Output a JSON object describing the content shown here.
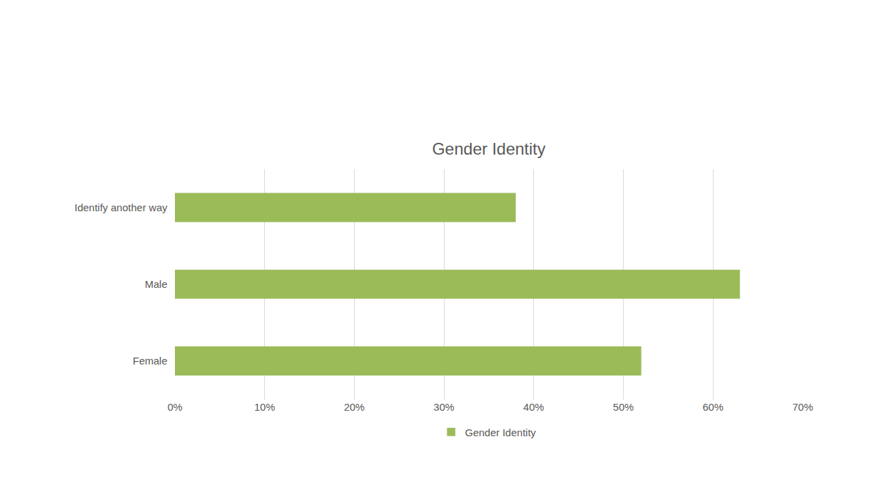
{
  "chart_data": {
    "type": "bar",
    "title": "Gender Identity",
    "orientation": "horizontal",
    "categories": [
      "Identify another way",
      "Male",
      "Female"
    ],
    "series": [
      {
        "name": "Gender Identity",
        "color": "#9bbb59",
        "values": [
          38,
          63,
          52
        ]
      }
    ],
    "xlim": [
      0,
      70
    ],
    "xticks": [
      {
        "value": 0,
        "label": "0%"
      },
      {
        "value": 10,
        "label": "10%"
      },
      {
        "value": 20,
        "label": "20%"
      },
      {
        "value": 30,
        "label": "30%"
      },
      {
        "value": 40,
        "label": "40%"
      },
      {
        "value": 50,
        "label": "50%"
      },
      {
        "value": 60,
        "label": "60%"
      },
      {
        "value": 70,
        "label": "70%"
      }
    ],
    "grid": true,
    "legend": "bottom"
  }
}
